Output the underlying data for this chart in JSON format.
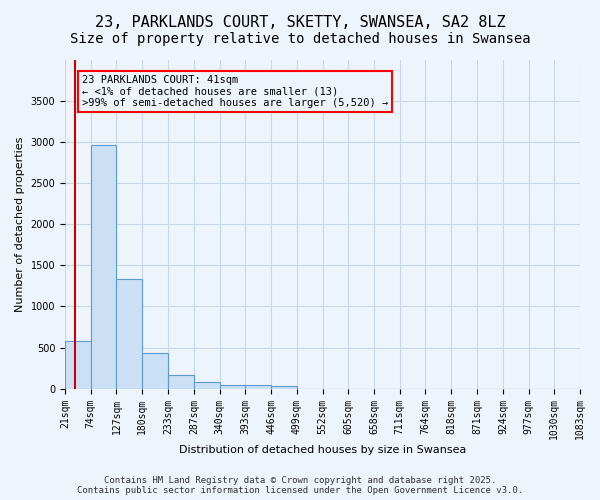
{
  "title": "23, PARKLANDS COURT, SKETTY, SWANSEA, SA2 8LZ",
  "subtitle": "Size of property relative to detached houses in Swansea",
  "xlabel": "Distribution of detached houses by size in Swansea",
  "ylabel": "Number of detached properties",
  "bar_values": [
    580,
    2960,
    1340,
    430,
    160,
    80,
    40,
    40,
    30,
    0,
    0,
    0,
    0,
    0,
    0,
    0,
    0,
    0,
    0,
    0
  ],
  "bin_edges": [
    21,
    74,
    127,
    180,
    233,
    287,
    340,
    393,
    446,
    499,
    552,
    605,
    658,
    711,
    764,
    818,
    871,
    924,
    977,
    1030,
    1083
  ],
  "tick_labels": [
    "21sqm",
    "74sqm",
    "127sqm",
    "180sqm",
    "233sqm",
    "287sqm",
    "340sqm",
    "393sqm",
    "446sqm",
    "499sqm",
    "552sqm",
    "605sqm",
    "658sqm",
    "711sqm",
    "764sqm",
    "818sqm",
    "871sqm",
    "924sqm",
    "977sqm",
    "1030sqm",
    "1083sqm"
  ],
  "bar_facecolor": "#cce0f5",
  "bar_edgecolor": "#5b9bd5",
  "grid_color": "#c8d8e8",
  "background_color": "#eef4fb",
  "ylim": [
    0,
    4000
  ],
  "yticks": [
    0,
    500,
    1000,
    1500,
    2000,
    2500,
    3000,
    3500
  ],
  "red_line_x": 41,
  "annotation_title": "23 PARKLANDS COURT: 41sqm",
  "annotation_line1": "← <1% of detached houses are smaller (13)",
  "annotation_line2": ">99% of semi-detached houses are larger (5,520) →",
  "annotation_box_color": "#ff0000",
  "red_line_color": "#cc0000",
  "footer_line1": "Contains HM Land Registry data © Crown copyright and database right 2025.",
  "footer_line2": "Contains public sector information licensed under the Open Government Licence v3.0.",
  "title_fontsize": 11,
  "subtitle_fontsize": 10,
  "axis_label_fontsize": 8,
  "tick_fontsize": 7,
  "annotation_fontsize": 7.5,
  "footer_fontsize": 6.5
}
